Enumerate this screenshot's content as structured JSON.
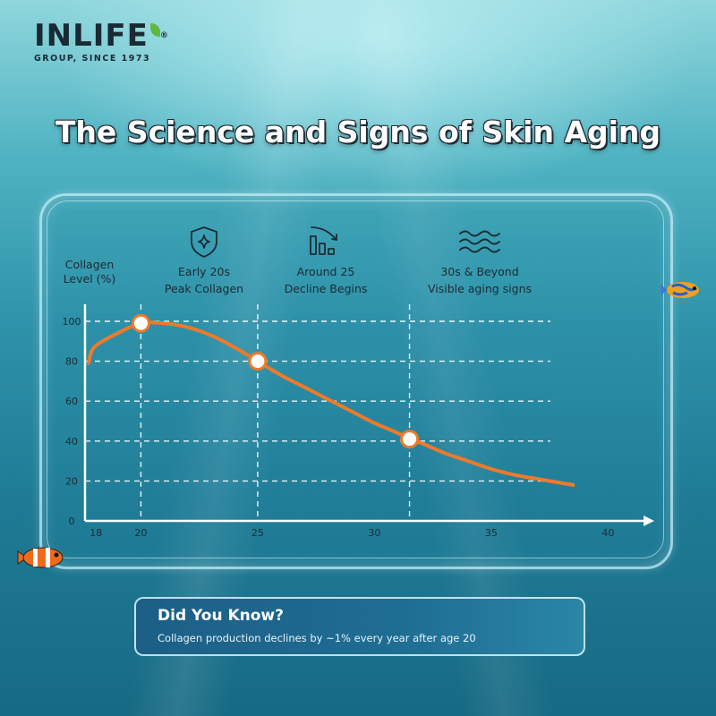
{
  "brand": {
    "name": "INLIFE",
    "tagline": "GROUP, SINCE 1973"
  },
  "title": "The Science and Signs of Skin Aging",
  "milestones": [
    {
      "icon": "shield-sparkle-icon",
      "line1": "Early 20s",
      "line2": "Peak Collagen",
      "age": 20
    },
    {
      "icon": "declining-bars-icon",
      "line1": "Around 25",
      "line2": "Decline Begins",
      "age": 25
    },
    {
      "icon": "waves-icon",
      "line1": "30s & Beyond",
      "line2": "Visible aging signs",
      "age": 31.5
    }
  ],
  "chart_data": {
    "type": "line",
    "ylabel_line1": "Collagen",
    "ylabel_line2": "Level (%)",
    "xlabel": "",
    "x_ticks": [
      18,
      20,
      25,
      30,
      35,
      40
    ],
    "y_ticks": [
      0,
      20,
      40,
      60,
      80,
      100
    ],
    "xlim": [
      17,
      41
    ],
    "ylim": [
      0,
      100
    ],
    "grid": "dashed",
    "series": [
      {
        "color": "#ee7a2a",
        "x": [
          17,
          18,
          19,
          20,
          21,
          22,
          23,
          24,
          25,
          26,
          27,
          28,
          29,
          30,
          31,
          31.5,
          32,
          33,
          34,
          35,
          36,
          37,
          38.5
        ],
        "y": [
          79,
          87,
          94,
          99,
          99,
          97,
          93,
          87,
          80,
          73,
          67,
          61,
          55,
          49,
          44,
          41,
          39,
          34,
          30,
          26,
          23,
          21,
          18
        ]
      }
    ],
    "highlight_points": [
      {
        "x": 20,
        "y": 99
      },
      {
        "x": 25,
        "y": 80
      },
      {
        "x": 31.5,
        "y": 41
      }
    ]
  },
  "info_box": {
    "title": "Did You Know?",
    "text": "Collagen production declines by ~1% every year after age 20"
  }
}
